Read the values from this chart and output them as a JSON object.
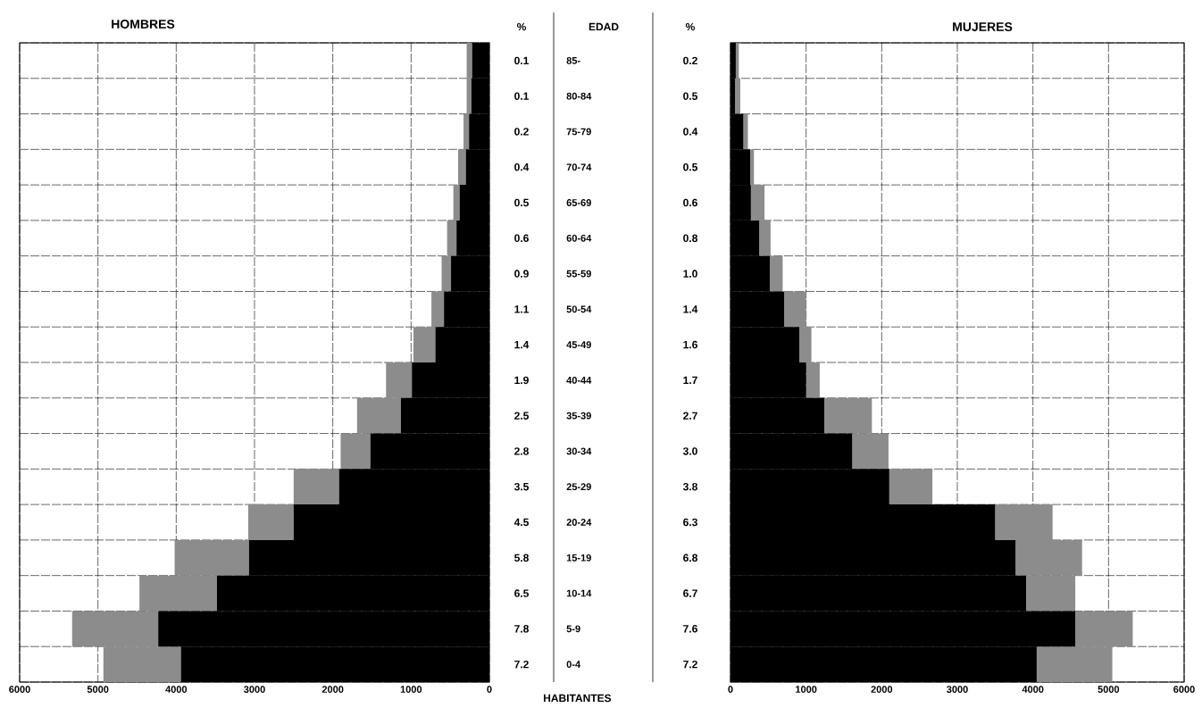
{
  "chart_data": [
    {
      "type": "bar",
      "orientation": "horizontal",
      "stacked": true,
      "title": "HOMBRES",
      "ylabel": "EDAD",
      "xlabel": "HABITANTES",
      "categories": [
        "85-",
        "80-84",
        "75-79",
        "70-74",
        "65-69",
        "60-64",
        "55-59",
        "50-54",
        "45-49",
        "40-44",
        "35-39",
        "30-34",
        "25-29",
        "20-24",
        "15-19",
        "10-14",
        "5-9",
        "0-4"
      ],
      "series": [
        {
          "color": "#000000",
          "values": [
            220,
            230,
            260,
            300,
            380,
            420,
            490,
            580,
            690,
            990,
            1130,
            1520,
            1920,
            2500,
            3070,
            3480,
            4230,
            3940
          ]
        },
        {
          "color": "#8c8c8c",
          "values": [
            70,
            60,
            70,
            100,
            80,
            120,
            120,
            160,
            280,
            330,
            560,
            380,
            580,
            580,
            950,
            990,
            1100,
            990
          ]
        }
      ],
      "xlim": [
        6000,
        0
      ],
      "xticks": [
        0,
        1000,
        2000,
        3000,
        4000,
        5000,
        6000
      ],
      "grid": true,
      "annotations": [
        "%",
        "0.1",
        "0.1",
        "0.2",
        "0.4",
        "0.5",
        "0.6",
        "0.9",
        "1.1",
        "1.4",
        "1.9",
        "2.5",
        "2.8",
        "3.5",
        "4.5",
        "5.8",
        "6.5",
        "7.8",
        "7.2"
      ]
    },
    {
      "type": "bar",
      "orientation": "horizontal",
      "stacked": true,
      "title": "MUJERES",
      "categories": [
        null,
        null,
        null,
        null,
        null,
        null,
        null,
        null,
        null,
        null,
        null,
        null,
        null,
        null,
        null,
        null,
        null,
        null
      ],
      "series": [
        {
          "color": "#000000",
          "values": [
            70,
            60,
            170,
            260,
            270,
            380,
            520,
            710,
            910,
            1000,
            1240,
            1610,
            2100,
            3500,
            3770,
            3910,
            4560,
            4050
          ]
        },
        {
          "color": "#8c8c8c",
          "values": [
            40,
            70,
            60,
            50,
            180,
            150,
            170,
            290,
            160,
            180,
            630,
            480,
            570,
            760,
            880,
            650,
            760,
            1000
          ]
        }
      ],
      "xlim": [
        0,
        6000
      ],
      "xticks": [
        0,
        1000,
        2000,
        3000,
        4000,
        5000,
        6000
      ],
      "grid": true,
      "annotations": [
        "%",
        "0.2",
        "0.5",
        "0.4",
        "0.5",
        "0.6",
        "0.8",
        "1.0",
        "1.4",
        "1.6",
        "1.7",
        "2.7",
        "3.0",
        "3.8",
        "6.3",
        "6.8",
        "6.7",
        "7.6",
        "7.2"
      ]
    }
  ]
}
